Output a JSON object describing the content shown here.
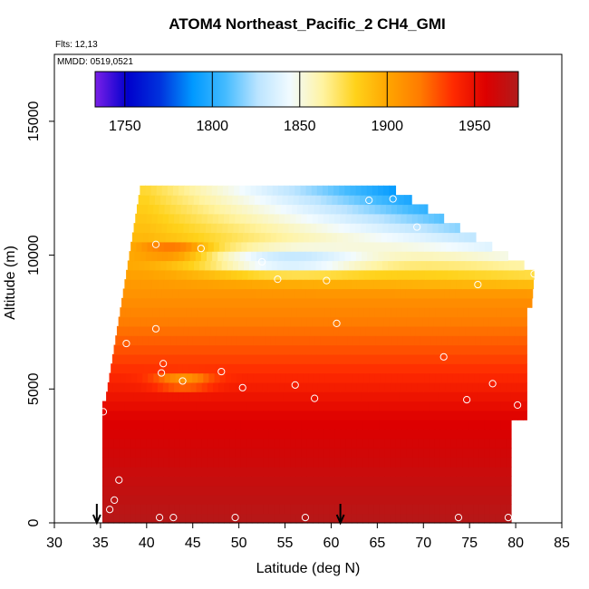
{
  "chart_data": {
    "type": "heatmap",
    "title": "ATOM4 Northeast_Pacific_2 CH4_GMI",
    "annotations": [
      "Flts: 12,13",
      "MMDD: 0519,0521"
    ],
    "xlabel": "Latitude (deg N)",
    "ylabel": "Altitude (m)",
    "xlim": [
      30,
      85
    ],
    "ylim": [
      0,
      17500
    ],
    "x_ticks": [
      30,
      35,
      40,
      45,
      50,
      55,
      60,
      65,
      70,
      75,
      80,
      85
    ],
    "y_ticks": [
      0,
      5000,
      10000,
      15000
    ],
    "colorbar": {
      "range": [
        1733,
        1975
      ],
      "ticks": [
        1750,
        1800,
        1850,
        1900,
        1950
      ],
      "colors": [
        "#7a1fe8",
        "#0000cc",
        "#0033dd",
        "#0099ff",
        "#44bbff",
        "#bbe4ff",
        "#f2fbff",
        "#fff3a0",
        "#ffd21a",
        "#ffa500",
        "#ff7a00",
        "#ff2a00",
        "#dd0000",
        "#b01b1b"
      ],
      "placement": "top"
    },
    "flight_arrows_lat": [
      34.6,
      61.0
    ],
    "profile_points": [
      [
        36.0,
        500
      ],
      [
        36.5,
        850
      ],
      [
        37.0,
        1600
      ],
      [
        35.3,
        4150
      ],
      [
        37.8,
        6700
      ],
      [
        41.0,
        7250
      ],
      [
        41.6,
        5600
      ],
      [
        41.8,
        5950
      ],
      [
        43.9,
        5300
      ],
      [
        48.1,
        5650
      ],
      [
        50.4,
        5050
      ],
      [
        56.1,
        5150
      ],
      [
        58.2,
        4650
      ],
      [
        60.6,
        7450
      ],
      [
        41.0,
        10400
      ],
      [
        45.9,
        10250
      ],
      [
        52.5,
        9750
      ],
      [
        54.2,
        9100
      ],
      [
        59.5,
        9050
      ],
      [
        64.1,
        12050
      ],
      [
        66.7,
        12100
      ],
      [
        69.3,
        11050
      ],
      [
        72.2,
        6200
      ],
      [
        74.7,
        4600
      ],
      [
        75.9,
        8900
      ],
      [
        77.5,
        5200
      ],
      [
        80.2,
        4400
      ],
      [
        82.0,
        9300
      ],
      [
        41.4,
        200
      ],
      [
        42.9,
        200
      ],
      [
        49.6,
        200
      ],
      [
        57.2,
        200
      ],
      [
        73.8,
        200
      ],
      [
        79.2,
        200
      ]
    ]
  }
}
